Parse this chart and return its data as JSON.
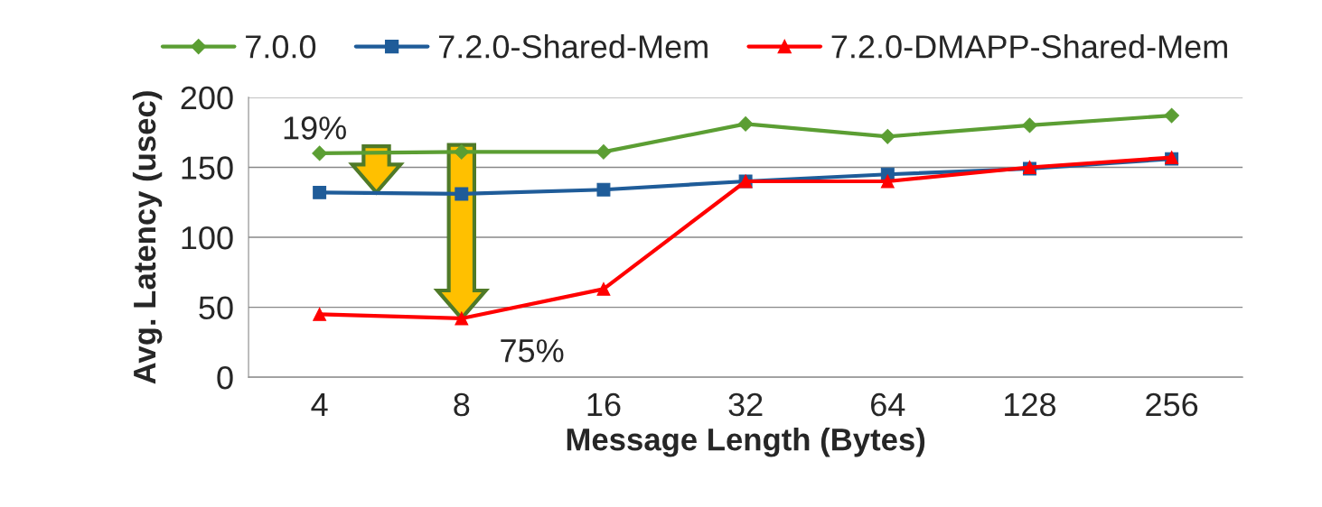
{
  "chart_data": {
    "type": "line",
    "xlabel": "Message Length (Bytes)",
    "ylabel": "Avg. Latency (usec)",
    "categories": [
      "4",
      "8",
      "16",
      "32",
      "64",
      "128",
      "256"
    ],
    "series": [
      {
        "name": "7.0.0",
        "color": "#5b9e33",
        "marker": "diamond",
        "values": [
          160,
          161,
          161,
          181,
          172,
          180,
          187
        ]
      },
      {
        "name": "7.2.0-Shared-Mem",
        "color": "#1f5c99",
        "marker": "square",
        "values": [
          132,
          131,
          134,
          140,
          145,
          149,
          156
        ]
      },
      {
        "name": "7.2.0-DMAPP-Shared-Mem",
        "color": "#ff0000",
        "marker": "triangle",
        "values": [
          45,
          42,
          63,
          140,
          140,
          150,
          157
        ]
      }
    ],
    "ylim": [
      0,
      200
    ],
    "yticks": [
      0,
      50,
      100,
      150,
      200
    ],
    "grid": "y",
    "legend": "top",
    "line_style": "solid",
    "annotations": [
      {
        "text": "19%",
        "x": "4",
        "y": 160
      },
      {
        "text": "75%",
        "x": "8",
        "y": 42
      }
    ]
  }
}
